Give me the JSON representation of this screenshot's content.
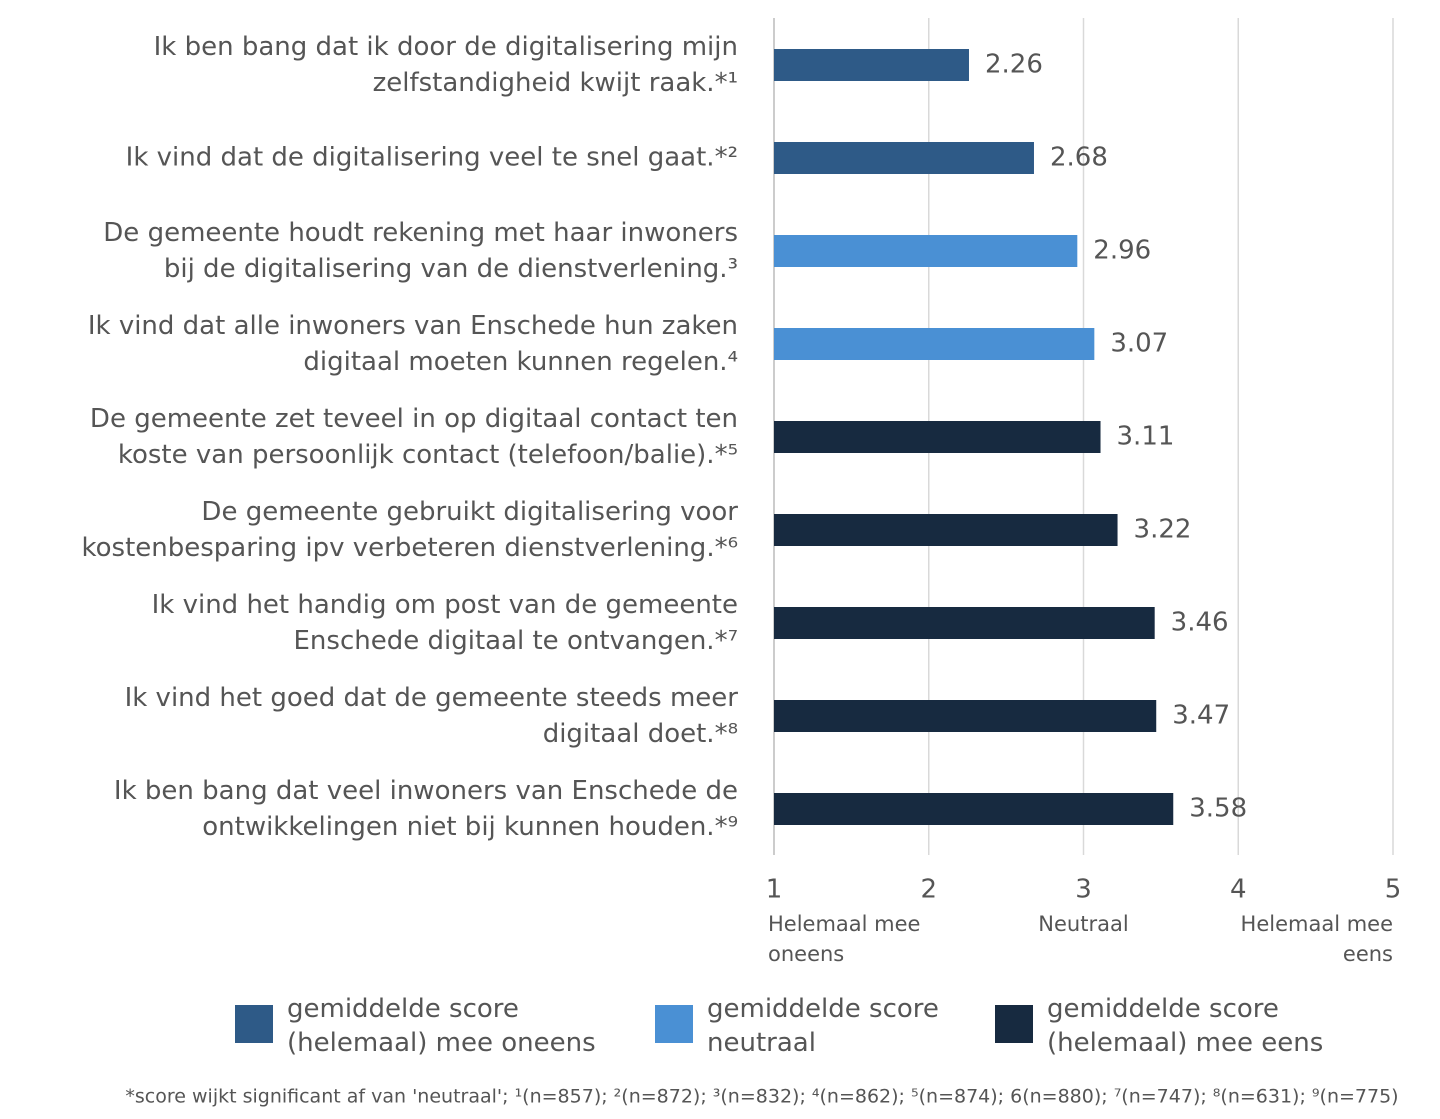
{
  "chart_data": {
    "type": "barh",
    "categories": [
      "Ik ben bang dat ik door de digitalisering mijn\nzelfstandigheid kwijt raak.*¹",
      "Ik vind dat de digitalisering veel te snel gaat.*²",
      "De gemeente houdt rekening met haar inwoners\nbij de digitalisering van de dienstverlening.³",
      "Ik vind dat alle inwoners van Enschede hun zaken\ndigitaal moeten kunnen regelen.⁴",
      "De gemeente zet teveel in op digitaal contact ten\nkoste van persoonlijk contact (telefoon/balie).*⁵",
      "De gemeente gebruikt digitalisering voor\nkostenbesparing ipv verbeteren dienstverlening.*⁶",
      "Ik vind het handig om post van de gemeente\nEnschede digitaal te ontvangen.*⁷",
      "Ik vind het goed dat de gemeente steeds meer\ndigitaal doet.*⁸",
      "Ik ben bang dat veel inwoners van Enschede de\nontwikkelingen niet bij kunnen houden.*⁹"
    ],
    "series": [
      {
        "name": "gemiddelde score\n(helemaal) mee oneens",
        "color": "#2e5a87",
        "values": [
          2.26,
          2.68,
          null,
          null,
          null,
          null,
          null,
          null,
          null
        ]
      },
      {
        "name": "gemiddelde score\nneutraal",
        "color": "#4a90d4",
        "values": [
          null,
          null,
          2.96,
          3.07,
          null,
          null,
          null,
          null,
          null
        ]
      },
      {
        "name": "gemiddelde score\n(helemaal) mee eens",
        "color": "#172a40",
        "values": [
          null,
          null,
          null,
          null,
          3.11,
          3.22,
          3.46,
          3.47,
          3.58
        ]
      }
    ],
    "xlim": [
      1,
      5
    ],
    "xticks": [
      1,
      2,
      3,
      4,
      5
    ],
    "grid": true,
    "scale_labels": [
      {
        "value": 1,
        "label": "Helemaal mee\noneens"
      },
      {
        "value": 3,
        "label": "Neutraal"
      },
      {
        "value": 5,
        "label": "Helemaal mee\neens"
      }
    ],
    "legend": "bottom",
    "note": "*score wijkt significant af van 'neutraal'; ¹(n=857); ²(n=872); ³(n=832); ⁴(n=862); ⁵(n=874); 6(n=880); ⁷(n=747); ⁸(n=631); ⁹(n=775)"
  }
}
